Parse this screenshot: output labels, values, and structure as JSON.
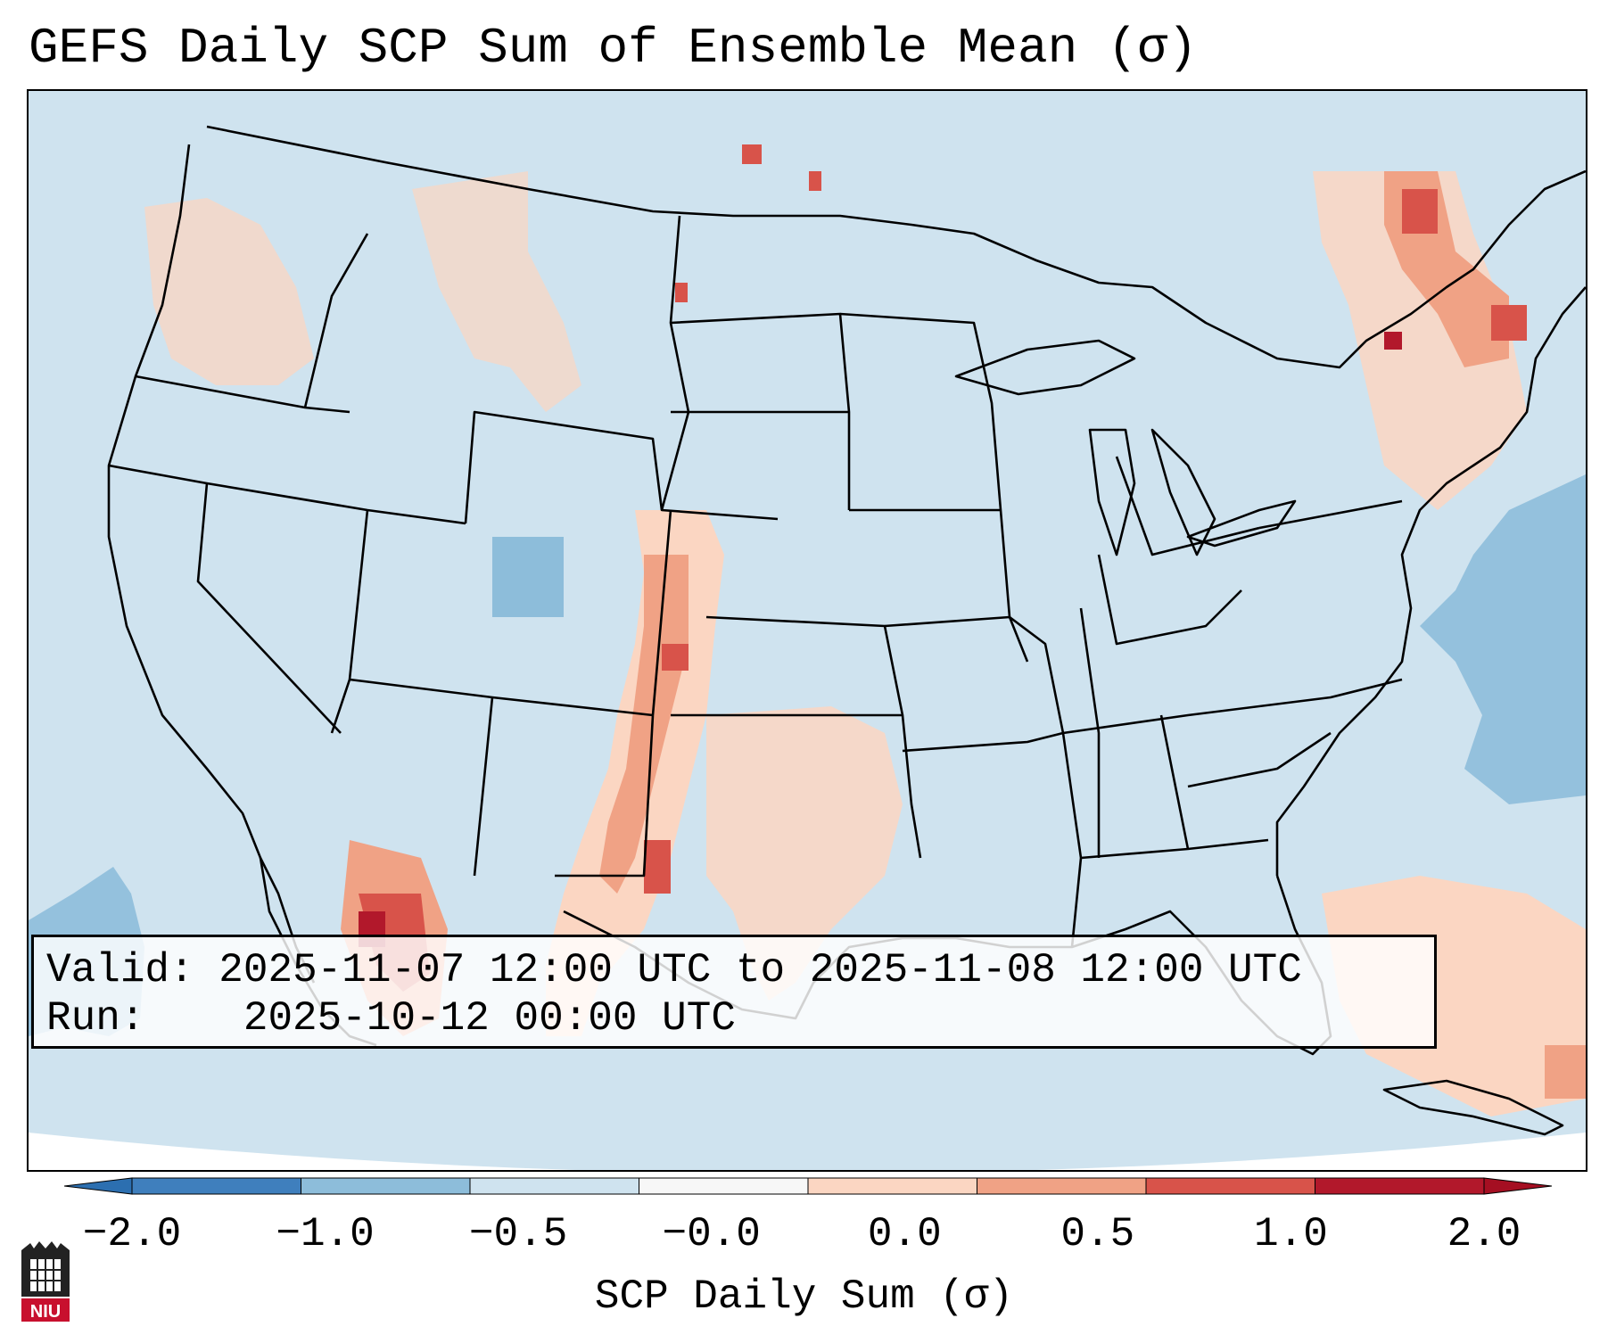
{
  "title": "GEFS Daily SCP Sum of Ensemble Mean (σ)",
  "info": {
    "valid_label": "Valid:",
    "valid_value": "2025-11-07 12:00 UTC to 2025-11-08 12:00 UTC",
    "run_label": "Run:",
    "run_value": "2025-10-12 00:00 UTC"
  },
  "colorbar": {
    "label": "SCP Daily Sum (σ)",
    "ticks": [
      "−2.0",
      "−1.0",
      "−0.5",
      "−0.0",
      "0.0",
      "0.5",
      "1.0",
      "2.0"
    ],
    "colors": [
      "#3f7fbd",
      "#8dbdda",
      "#cfe3ef",
      "#f7f7f7",
      "#fbd6c2",
      "#f0a285",
      "#d8534a",
      "#b2182b"
    ],
    "extend_low_color": "#2c6fb0",
    "extend_high_color": "#a50f22"
  },
  "logo": {
    "name": "niu-logo",
    "text": "NIU"
  },
  "icon_names": [
    "niu-logo"
  ],
  "map": {
    "background_color": "#cfe3ef",
    "region": "Contiguous United States"
  }
}
